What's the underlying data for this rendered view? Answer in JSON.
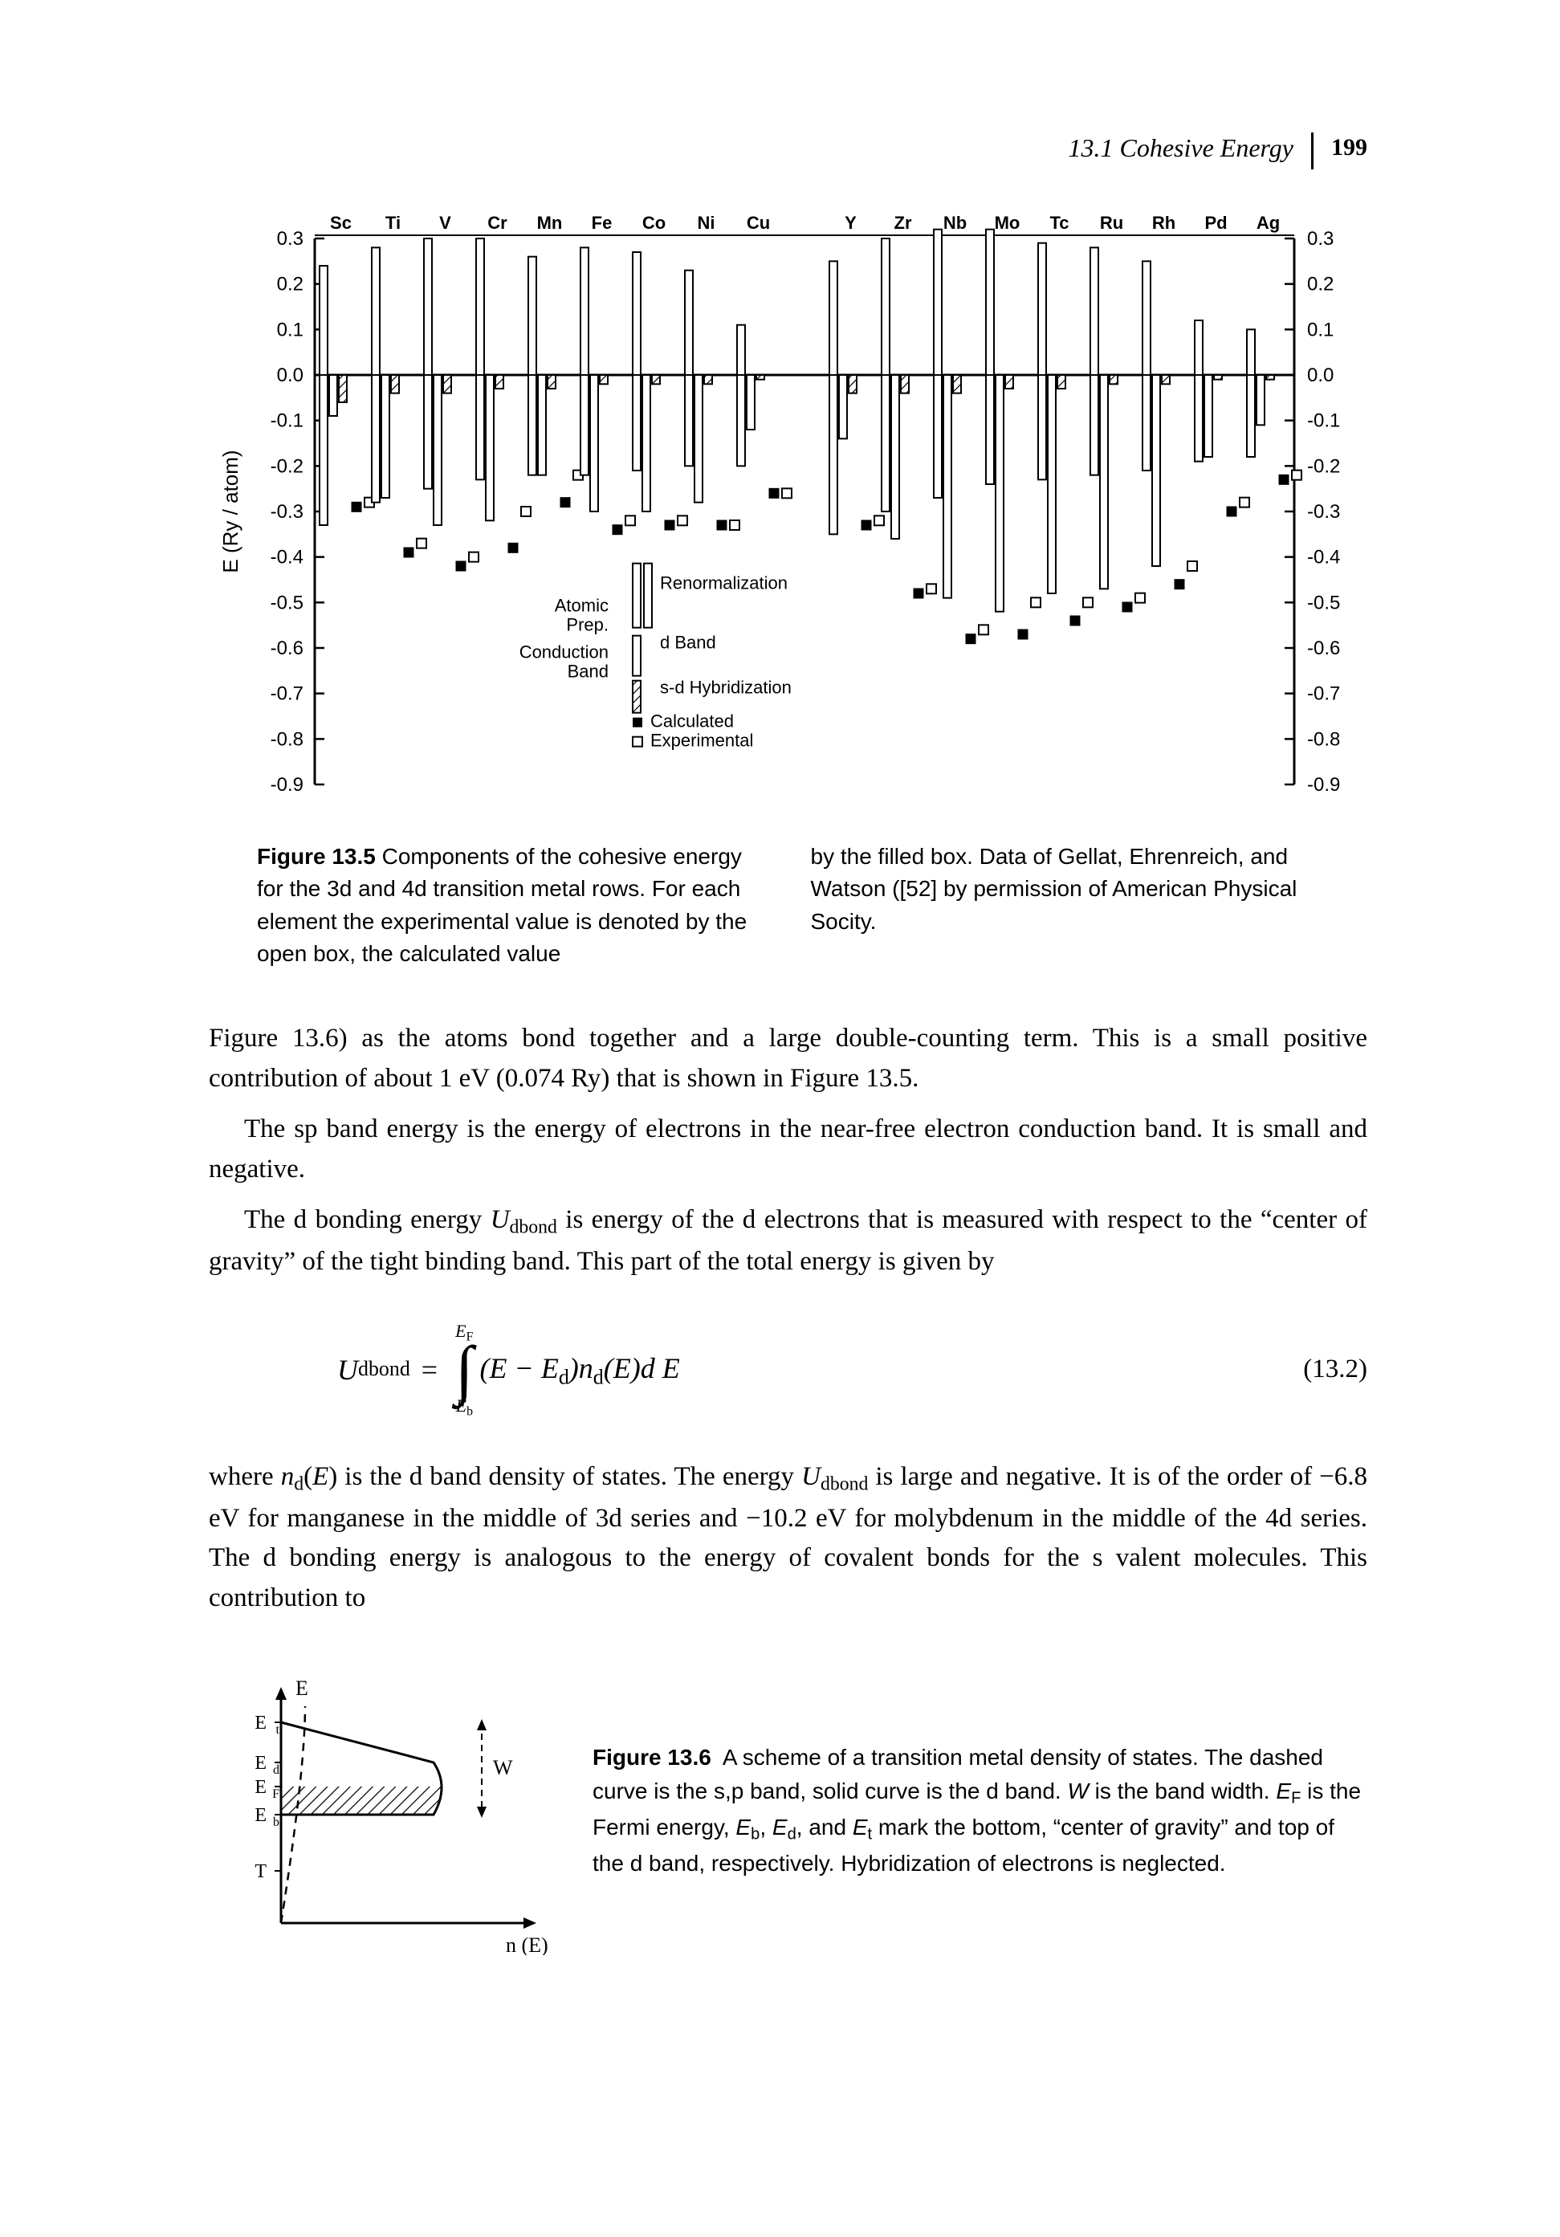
{
  "runningHead": {
    "section": "13.1 Cohesive Energy",
    "page": "199"
  },
  "fig5": {
    "type": "grouped-bar",
    "ylabel": "E (Ry / atom)",
    "ylim": [
      -0.9,
      0.3
    ],
    "ytick_step": 0.1,
    "axis_font": 24,
    "label_font": 26,
    "legend_font": 22,
    "colors": {
      "axis": "#000000",
      "bar": "#ffffff",
      "bar_stroke": "#000000",
      "hatch": "#000000"
    },
    "elements_top": [
      "Sc",
      "Ti",
      "V",
      "Cr",
      "Mn",
      "Fe",
      "Co",
      "Ni",
      "Cu",
      "",
      "Y",
      "Zr",
      "Nb",
      "Mo",
      "Tc",
      "Ru",
      "Rh",
      "Pd",
      "Ag"
    ],
    "legend": {
      "items": [
        "Atomic Prep.",
        "Conduction Band",
        "Renormalization",
        "d Band",
        "s-d Hybridization",
        "Calculated",
        "Experimental"
      ]
    },
    "series": [
      {
        "label": "Sc",
        "atomic": 0.24,
        "renorm": -0.05,
        "conduction": -0.33,
        "dband": -0.09,
        "sd": -0.06,
        "calc": -0.29,
        "exp": -0.28
      },
      {
        "label": "Ti",
        "atomic": 0.28,
        "renorm": -0.08,
        "conduction": -0.28,
        "dband": -0.27,
        "sd": -0.04,
        "calc": -0.39,
        "exp": -0.37
      },
      {
        "label": "V",
        "atomic": 0.3,
        "renorm": -0.1,
        "conduction": -0.25,
        "dband": -0.33,
        "sd": -0.04,
        "calc": -0.42,
        "exp": -0.4
      },
      {
        "label": "Cr",
        "atomic": 0.3,
        "renorm": -0.1,
        "conduction": -0.23,
        "dband": -0.32,
        "sd": -0.03,
        "calc": -0.38,
        "exp": -0.3
      },
      {
        "label": "Mn",
        "atomic": 0.26,
        "renorm": -0.07,
        "conduction": -0.22,
        "dband": -0.22,
        "sd": -0.03,
        "calc": -0.28,
        "exp": -0.22
      },
      {
        "label": "Fe",
        "atomic": 0.28,
        "renorm": -0.08,
        "conduction": -0.22,
        "dband": -0.3,
        "sd": -0.02,
        "calc": -0.34,
        "exp": -0.32
      },
      {
        "label": "Co",
        "atomic": 0.27,
        "renorm": -0.07,
        "conduction": -0.21,
        "dband": -0.3,
        "sd": -0.02,
        "calc": -0.33,
        "exp": -0.32
      },
      {
        "label": "Ni",
        "atomic": 0.23,
        "renorm": -0.06,
        "conduction": -0.2,
        "dband": -0.28,
        "sd": -0.02,
        "calc": -0.33,
        "exp": -0.33
      },
      {
        "label": "Cu",
        "atomic": 0.11,
        "renorm": -0.04,
        "conduction": -0.2,
        "dband": -0.12,
        "sd": -0.01,
        "calc": -0.26,
        "exp": -0.26
      },
      {
        "label": "Y",
        "atomic": 0.25,
        "renorm": -0.05,
        "conduction": -0.35,
        "dband": -0.14,
        "sd": -0.04,
        "calc": -0.33,
        "exp": -0.32
      },
      {
        "label": "Zr",
        "atomic": 0.3,
        "renorm": -0.08,
        "conduction": -0.3,
        "dband": -0.36,
        "sd": -0.04,
        "calc": -0.48,
        "exp": -0.47
      },
      {
        "label": "Nb",
        "atomic": 0.32,
        "renorm": -0.1,
        "conduction": -0.27,
        "dband": -0.49,
        "sd": -0.04,
        "calc": -0.58,
        "exp": -0.56
      },
      {
        "label": "Mo",
        "atomic": 0.32,
        "renorm": -0.1,
        "conduction": -0.24,
        "dband": -0.52,
        "sd": -0.03,
        "calc": -0.57,
        "exp": -0.5
      },
      {
        "label": "Tc",
        "atomic": 0.29,
        "renorm": -0.09,
        "conduction": -0.23,
        "dband": -0.48,
        "sd": -0.03,
        "calc": -0.54,
        "exp": -0.5
      },
      {
        "label": "Ru",
        "atomic": 0.28,
        "renorm": -0.08,
        "conduction": -0.22,
        "dband": -0.47,
        "sd": -0.02,
        "calc": -0.51,
        "exp": -0.49
      },
      {
        "label": "Rh",
        "atomic": 0.25,
        "renorm": -0.06,
        "conduction": -0.21,
        "dband": -0.42,
        "sd": -0.02,
        "calc": -0.46,
        "exp": -0.42
      },
      {
        "label": "Pd",
        "atomic": 0.12,
        "renorm": -0.04,
        "conduction": -0.19,
        "dband": -0.18,
        "sd": -0.01,
        "calc": -0.3,
        "exp": -0.28
      },
      {
        "label": "Ag",
        "atomic": 0.1,
        "renorm": -0.03,
        "conduction": -0.18,
        "dband": -0.11,
        "sd": -0.01,
        "calc": -0.23,
        "exp": -0.22
      }
    ]
  },
  "fig5cap_left": "Figure 13.5  Components of the cohesive energy for the 3d and 4d transition metal rows. For each element the experimental value is denoted by the open box, the calculated value",
  "fig5cap_right": "by the filled box. Data of Gellat, Ehrenreich, and Watson ([52] by permission of American Physical Socity.",
  "para1": "Figure 13.6) as the atoms bond together and a large double-counting term. This is a small positive contribution of about 1 eV (0.074 Ry) that is shown in Figure 13.5.",
  "para2": "The sp band energy is the energy of electrons in the near-free electron conduction band. It is small and negative.",
  "para3a": "The d bonding energy ",
  "para3b": " is energy of the d electrons that is measured with respect to the “center of gravity” of the tight binding band. This part of the total energy is given by",
  "eq": {
    "lhs": "U",
    "lhs_sub": "dbond",
    "upper": "E_F",
    "lower": "E_b",
    "integrand": "(E − E_d) n_d(E) dE",
    "num": "(13.2)"
  },
  "para4": "where n_d(E) is the d band density of states. The energy U_dbond is large and negative. It is of the order of −6.8 eV for manganese in the middle of 3d series and −10.2 eV for molybdenum in the middle of the 4d series. The d bonding energy is analogous to the energy of covalent bonds for the s valent molecules. This contribution to",
  "fig6": {
    "type": "schematic",
    "axis_labels": {
      "y_top": "E",
      "y_marks": [
        "Et",
        "Ed",
        "EF",
        "Eb",
        "T"
      ],
      "x": "n (E)"
    },
    "arrow_label": "W",
    "colors": {
      "line": "#000000"
    }
  },
  "fig6cap": "Figure 13.6  A scheme of a transition metal density of states. The dashed curve is the s,p band, solid curve is the d band. W is the band width. E_F is the Fermi energy, E_b, E_d, and E_t mark the bottom, “center of gravity” and top of the d band, respectively. Hybridization of electrons is neglected."
}
